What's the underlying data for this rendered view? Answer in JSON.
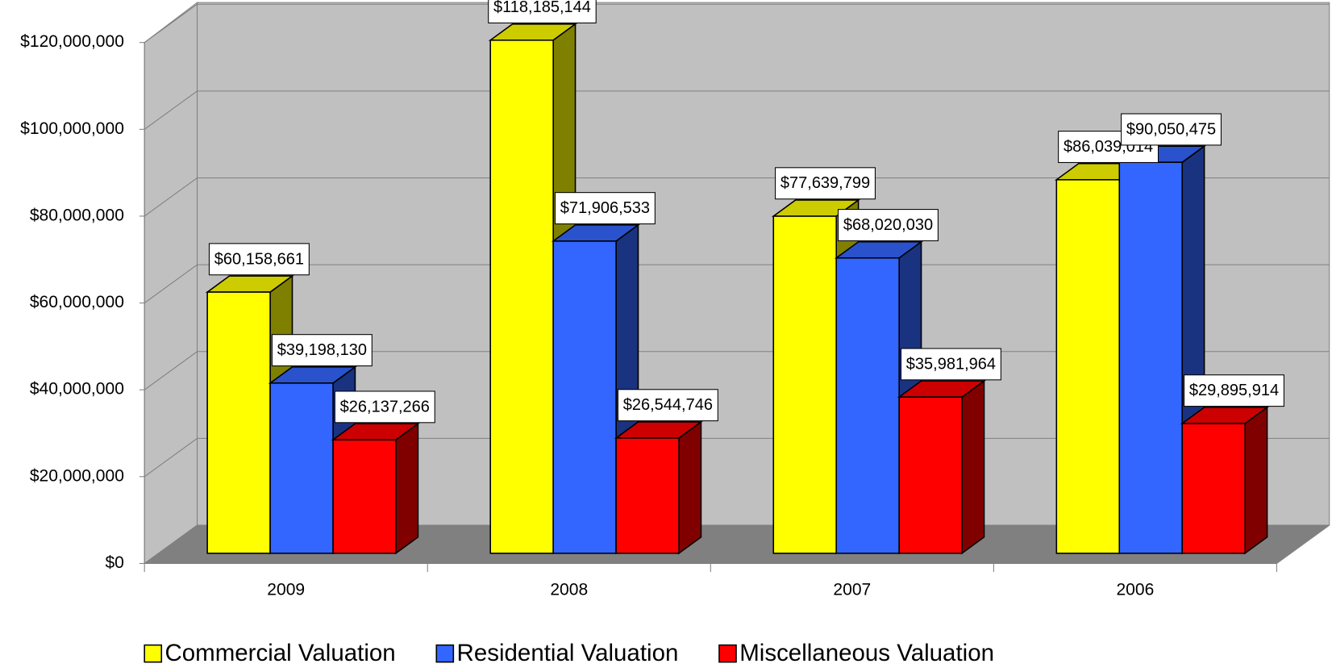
{
  "chart_data": {
    "type": "bar3d",
    "categories": [
      "2009",
      "2008",
      "2007",
      "2006"
    ],
    "series": [
      {
        "name": "Commercial Valuation",
        "color": "#ffff00",
        "values": [
          60158661,
          118185144,
          77639799,
          86039014
        ],
        "value_labels": [
          "$60,158,661",
          "$118,185,144",
          "$77,639,799",
          "$86,039,014"
        ]
      },
      {
        "name": "Residential Valuation",
        "color": "#3366ff",
        "values": [
          39198130,
          71906533,
          68020030,
          90050475
        ],
        "value_labels": [
          "$39,198,130",
          "$71,906,533",
          "$68,020,030",
          "$90,050,475"
        ]
      },
      {
        "name": "Miscellaneous Valuation",
        "color": "#ff0000",
        "values": [
          26137266,
          26544746,
          35981964,
          29895914
        ],
        "value_labels": [
          "$26,137,266",
          "$26,544,746",
          "$35,981,964",
          "$29,895,914"
        ]
      }
    ],
    "ylim": [
      0,
      120000000
    ],
    "yticks": [
      {
        "value": 0,
        "label": "$0"
      },
      {
        "value": 20000000,
        "label": "$20,000,000"
      },
      {
        "value": 40000000,
        "label": "$40,000,000"
      },
      {
        "value": 60000000,
        "label": "$60,000,000"
      },
      {
        "value": 80000000,
        "label": "$80,000,000"
      },
      {
        "value": 100000000,
        "label": "$100,000,000"
      },
      {
        "value": 120000000,
        "label": "$120,000,000"
      }
    ],
    "grid": true,
    "legend": "bottom"
  }
}
